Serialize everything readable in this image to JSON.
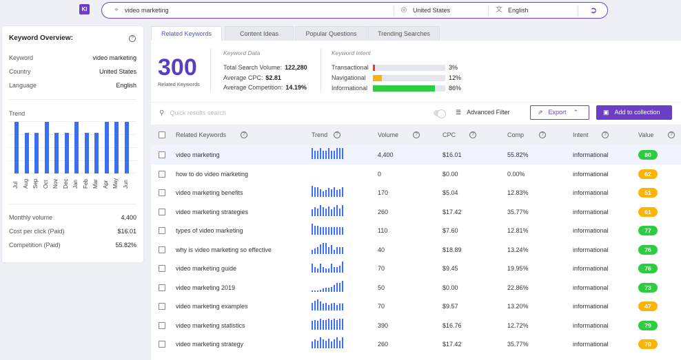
{
  "app": {
    "logo_text": "KI",
    "accent": "#6b3fc5",
    "bar_color": "#3b6ff0"
  },
  "search": {
    "keyword": "video marketing",
    "country": "United States",
    "language": "English",
    "location_icon": "location-icon",
    "globe_icon": "globe-icon",
    "language_icon": "translate-icon",
    "go_icon": "arrow-go-icon"
  },
  "overview": {
    "title": "Keyword Overview:",
    "rows": [
      {
        "key": "Keyword",
        "value": "video marketing"
      },
      {
        "key": "Country",
        "value": "United States"
      },
      {
        "key": "Language",
        "value": "English"
      }
    ],
    "trend_label": "Trend",
    "trend": {
      "months": [
        "Jul",
        "Aug",
        "Sep",
        "Oct",
        "Nov",
        "Dec",
        "Jan",
        "Feb",
        "Mar",
        "Apr",
        "May",
        "Jun"
      ],
      "values": [
        1.0,
        0.78,
        0.78,
        1.0,
        0.78,
        0.78,
        1.0,
        0.78,
        0.78,
        1.0,
        1.0,
        1.0
      ]
    },
    "stats": [
      {
        "key": "Monthly volume",
        "value": "4,400"
      },
      {
        "key": "Cost per click (Paid)",
        "value": "$16.01"
      },
      {
        "key": "Competition (Paid)",
        "value": "55.82%"
      }
    ]
  },
  "tabs": [
    "Related Keywords",
    "Content Ideas",
    "Popular Questions",
    "Trending Searches"
  ],
  "summary": {
    "count": "300",
    "count_label": "Related Keywords",
    "data_title": "Keyword Data",
    "data": [
      {
        "label": "Total Search Volume:",
        "value": "122,280"
      },
      {
        "label": "Average CPC:",
        "value": "$2.81"
      },
      {
        "label": "Average Competition:",
        "value": "14.19%"
      }
    ],
    "intent_title": "Keyword Intent",
    "intent": [
      {
        "label": "Transactional",
        "pct": "3%",
        "frac": 0.03,
        "color": "#e53935"
      },
      {
        "label": "Navigational",
        "pct": "12%",
        "frac": 0.12,
        "color": "#f9b406"
      },
      {
        "label": "Informational",
        "pct": "86%",
        "frac": 0.86,
        "color": "#2ecc40"
      }
    ]
  },
  "toolbar": {
    "search_placeholder": "Quick results search",
    "advanced_filter": "Advanced Filter",
    "export": "Export",
    "add_to_collection": "Add to collection"
  },
  "table": {
    "headers": {
      "keyword": "Related Keywords",
      "trend": "Trend",
      "volume": "Volume",
      "cpc": "CPC",
      "comp": "Comp",
      "intent": "Intent",
      "value": "Value"
    },
    "rows": [
      {
        "keyword": "video marketing",
        "volume": "4,400",
        "cpc": "$16.01",
        "comp": "55.82%",
        "intent": "informational",
        "value": "80",
        "color": "#2ecc40",
        "trend": [
          1,
          0.78,
          0.78,
          1,
          0.78,
          0.78,
          1,
          0.78,
          0.78,
          1,
          1,
          1
        ]
      },
      {
        "keyword": "how to do video marketing",
        "volume": "0",
        "cpc": "$0.00",
        "comp": "0.00%",
        "intent": "informational",
        "value": "62",
        "color": "#f9b406",
        "trend": []
      },
      {
        "keyword": "video marketing benefits",
        "volume": "170",
        "cpc": "$5.04",
        "comp": "12.83%",
        "intent": "informational",
        "value": "51",
        "color": "#f9b406",
        "trend": [
          1,
          0.9,
          0.9,
          0.7,
          0.5,
          0.6,
          0.8,
          0.7,
          0.9,
          0.6,
          0.7,
          0.9
        ]
      },
      {
        "keyword": "video marketing strategies",
        "volume": "260",
        "cpc": "$17.42",
        "comp": "35.77%",
        "intent": "informational",
        "value": "61",
        "color": "#f9b406",
        "trend": [
          0.6,
          0.8,
          0.7,
          1,
          0.8,
          0.7,
          0.9,
          0.6,
          0.8,
          1,
          0.7,
          1
        ]
      },
      {
        "keyword": "types of video marketing",
        "volume": "110",
        "cpc": "$7.60",
        "comp": "12.81%",
        "intent": "informational",
        "value": "77",
        "color": "#2ecc40",
        "trend": [
          1,
          0.8,
          0.8,
          0.7,
          0.7,
          0.7,
          0.7,
          0.7,
          0.7,
          0.7,
          0.7,
          0.7
        ]
      },
      {
        "keyword": "why is video marketing so effective",
        "volume": "40",
        "cpc": "$18.89",
        "comp": "13.24%",
        "intent": "informational",
        "value": "76",
        "color": "#2ecc40",
        "trend": [
          0.4,
          0.5,
          0.6,
          0.9,
          1,
          1,
          0.6,
          0.8,
          0.4,
          0.6,
          0.6,
          0.6
        ]
      },
      {
        "keyword": "video marketing guide",
        "volume": "70",
        "cpc": "$9.45",
        "comp": "19.95%",
        "intent": "informational",
        "value": "76",
        "color": "#2ecc40",
        "trend": [
          0.8,
          0.5,
          0.4,
          0.8,
          0.5,
          0.4,
          0.4,
          0.8,
          0.5,
          0.5,
          0.6,
          1
        ]
      },
      {
        "keyword": "video marketing 2019",
        "volume": "50",
        "cpc": "$0.00",
        "comp": "22.86%",
        "intent": "informational",
        "value": "73",
        "color": "#2ecc40",
        "trend": [
          0.1,
          0.1,
          0.15,
          0.2,
          0.3,
          0.35,
          0.4,
          0.45,
          0.6,
          0.8,
          0.8,
          1
        ]
      },
      {
        "keyword": "video marketing examples",
        "volume": "70",
        "cpc": "$9.57",
        "comp": "13.20%",
        "intent": "informational",
        "value": "47",
        "color": "#f9b406",
        "trend": [
          0.7,
          0.9,
          1,
          0.8,
          0.6,
          0.7,
          0.5,
          0.6,
          0.7,
          0.5,
          0.6,
          0.6
        ]
      },
      {
        "keyword": "video marketing statistics",
        "volume": "390",
        "cpc": "$16.76",
        "comp": "12.72%",
        "intent": "informational",
        "value": "79",
        "color": "#2ecc40",
        "trend": [
          0.8,
          0.9,
          0.8,
          1,
          0.9,
          0.9,
          1,
          0.9,
          1,
          0.9,
          1,
          1
        ]
      },
      {
        "keyword": "video marketing strategy",
        "volume": "260",
        "cpc": "$17.42",
        "comp": "35.77%",
        "intent": "informational",
        "value": "70",
        "color": "#f9b406",
        "trend": [
          0.6,
          0.8,
          0.7,
          1,
          0.8,
          0.7,
          0.9,
          0.6,
          0.8,
          1,
          0.7,
          1
        ]
      }
    ]
  }
}
